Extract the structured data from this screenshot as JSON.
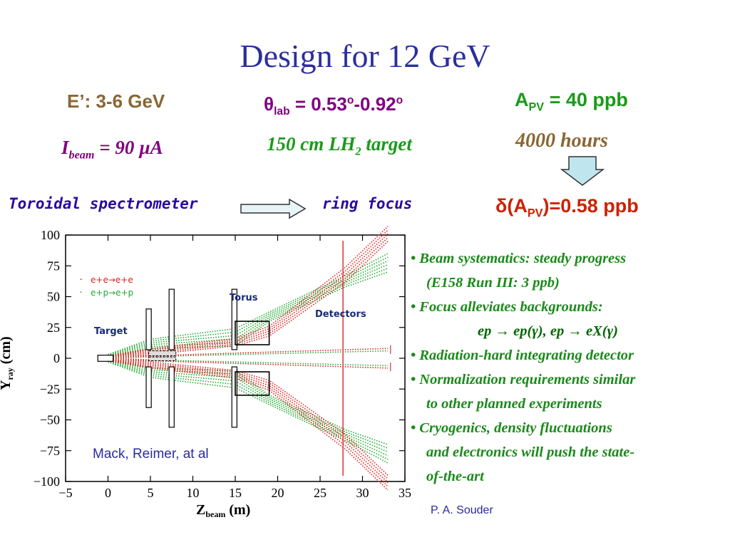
{
  "title": "Design for 12 GeV",
  "params": {
    "energy": "E’: 3-6 GeV",
    "theta_symbol": "θ",
    "theta_sub": "lab",
    "theta_value": " = 0.53",
    "theta_deg": "o",
    "theta_sep": "-0.92",
    "apv_main": "A",
    "apv_sub": "PV",
    "apv_value": " = 40 ppb",
    "ibeam_main": "I",
    "ibeam_sub": "beam",
    "ibeam_value": " = 90 µA",
    "target_main": "150 cm LH",
    "target_sub": "2",
    "target_tail": " target",
    "hours": "4000 hours",
    "toroidal": "Toroidal spectrometer",
    "ring_focus": "ring focus",
    "dapv_pre": "δ(A",
    "dapv_sub": "PV",
    "dapv_value": ")=0.58 ppb"
  },
  "bullets": [
    "• Beam systematics: steady progress",
    "(E158 Run III: 3 ppb)",
    "• Focus alleviates backgrounds:",
    "ep → ep(γ), ep → eX(γ)",
    "• Radiation-hard integrating detector",
    "• Normalization requirements similar",
    "to other planned experiments",
    "• Cryogenics, density fluctuations",
    "and electronics will push the state-",
    "of-the-art"
  ],
  "authors": "P. A. Souder",
  "plot": {
    "y_ticks": [
      "100",
      "75",
      "50",
      "25",
      "0",
      "−25",
      "−50",
      "−75",
      "−100"
    ],
    "x_ticks": [
      "−5",
      "0",
      "5",
      "10",
      "15",
      "20",
      "25",
      "30",
      "35"
    ],
    "y_label": "Y",
    "y_label_sub": "ray",
    "y_label_unit": "(cm)",
    "x_label": "Z",
    "x_label_sub": "beam",
    "x_label_unit": "(m)",
    "legend_ee": "e+e→e+e",
    "legend_ep": "e+p→e+p",
    "label_target": "Target",
    "label_torus": "Torus",
    "label_detectors": "Detectors",
    "credit": "Mack, Reimer, at al",
    "colors": {
      "red": "#dd2222",
      "green": "#22aa33",
      "axis": "#000000"
    }
  }
}
